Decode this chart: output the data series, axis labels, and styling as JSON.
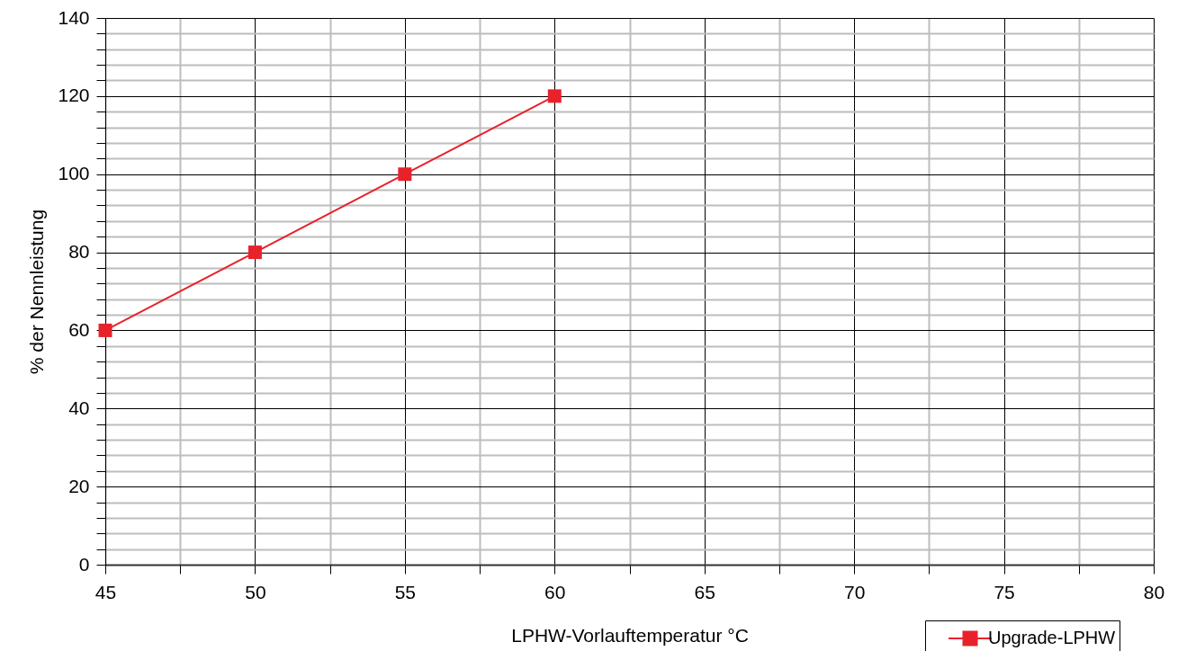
{
  "chart_data": {
    "type": "line",
    "xlabel": "LPHW-Vorlauftemperatur °C",
    "ylabel": "% der Nennleistung",
    "x": [
      45,
      50,
      55,
      60
    ],
    "series": [
      {
        "name": "Upgrade-LPHW",
        "color": "#e8222b",
        "values": [
          60,
          80,
          100,
          120
        ]
      }
    ],
    "xlim": [
      45,
      80
    ],
    "ylim": [
      0,
      140
    ],
    "xticks": [
      45,
      {
        "value": 47.5,
        "label": null
      },
      50,
      {
        "value": 52.5,
        "label": null
      },
      55,
      {
        "value": 57.5,
        "label": null
      },
      60,
      {
        "value": 62.5,
        "label": null
      },
      65,
      {
        "value": 67.5,
        "label": null
      },
      70,
      {
        "value": 72.5,
        "label": null
      },
      75,
      {
        "value": 77.5,
        "label": null
      },
      80
    ],
    "yticks": [
      0,
      {
        "value": 4,
        "label": null
      },
      {
        "value": 8,
        "label": null
      },
      {
        "value": 12,
        "label": null
      },
      {
        "value": 16,
        "label": null
      },
      20,
      {
        "value": 24,
        "label": null
      },
      {
        "value": 28,
        "label": null
      },
      {
        "value": 32,
        "label": null
      },
      {
        "value": 36,
        "label": null
      },
      40,
      {
        "value": 44,
        "label": null
      },
      {
        "value": 48,
        "label": null
      },
      {
        "value": 52,
        "label": null
      },
      {
        "value": 56,
        "label": null
      },
      60,
      {
        "value": 64,
        "label": null
      },
      {
        "value": 68,
        "label": null
      },
      {
        "value": 72,
        "label": null
      },
      {
        "value": 76,
        "label": null
      },
      80,
      {
        "value": 84,
        "label": null
      },
      {
        "value": 88,
        "label": null
      },
      {
        "value": 92,
        "label": null
      },
      {
        "value": 96,
        "label": null
      },
      100,
      {
        "value": 104,
        "label": null
      },
      {
        "value": 108,
        "label": null
      },
      {
        "value": 112,
        "label": null
      },
      {
        "value": 116,
        "label": null
      },
      120,
      {
        "value": 124,
        "label": null
      },
      {
        "value": 128,
        "label": null
      },
      {
        "value": 132,
        "label": null
      },
      {
        "value": 136,
        "label": null
      },
      140
    ],
    "grid": true,
    "legend": "bottom right",
    "marker": "square",
    "line_style": "solid"
  }
}
